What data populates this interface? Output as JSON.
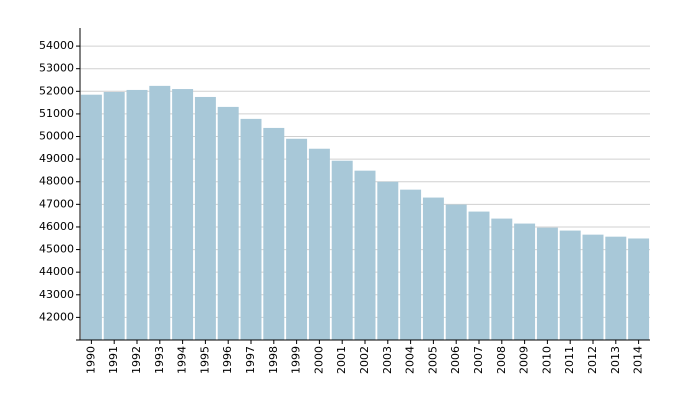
{
  "chart_data": {
    "type": "bar",
    "categories": [
      "1990",
      "1991",
      "1992",
      "1993",
      "1994",
      "1995",
      "1996",
      "1997",
      "1998",
      "1999",
      "2000",
      "2001",
      "2002",
      "2003",
      "2004",
      "2005",
      "2006",
      "2007",
      "2008",
      "2009",
      "2010",
      "2011",
      "2012",
      "2013",
      "2014"
    ],
    "values": [
      51850,
      51970,
      52060,
      52240,
      52100,
      51750,
      51310,
      50780,
      50380,
      49900,
      49460,
      48930,
      48490,
      48000,
      47650,
      47300,
      46990,
      46680,
      46370,
      46150,
      45970,
      45840,
      45660,
      45570,
      45490
    ],
    "color": "#a8c8d8",
    "ylim": [
      41000,
      54800
    ],
    "yticks": [
      42000,
      43000,
      44000,
      45000,
      46000,
      47000,
      48000,
      49000,
      50000,
      51000,
      52000,
      53000,
      54000
    ],
    "grid": true
  }
}
